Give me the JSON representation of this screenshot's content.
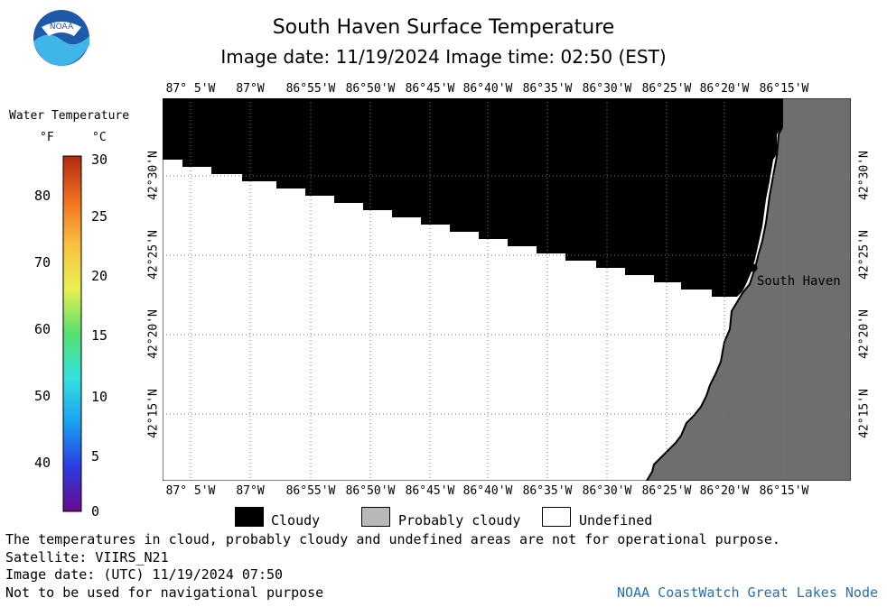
{
  "header": {
    "title": "South Haven Surface Temperature",
    "subtitle": "Image date: 11/19/2024   Image time: 02:50 (EST)"
  },
  "logo": {
    "text": "NOAA",
    "icon": "noaa-logo-icon",
    "colors": {
      "blue": "#1e5aa8",
      "cyan": "#3fb5e8"
    }
  },
  "colorbar": {
    "title": "Water Temperature",
    "unit_f": "°F",
    "unit_c": "°C",
    "f_ticks": [
      "80",
      "70",
      "60",
      "50",
      "40"
    ],
    "c_ticks": [
      "30",
      "25",
      "20",
      "15",
      "10",
      "5",
      "0"
    ],
    "colors": [
      "#6a0a8a",
      "#2b3ce0",
      "#1aa0f0",
      "#33e0e0",
      "#55e070",
      "#e8f050",
      "#f8c040",
      "#f07020",
      "#b02a10"
    ]
  },
  "map": {
    "lon_labels": [
      "87° 5'W",
      "87°W",
      "86°55'W",
      "86°50'W",
      "86°45'W",
      "86°40'W",
      "86°35'W",
      "86°30'W",
      "86°25'W",
      "86°20'W",
      "86°15'W"
    ],
    "lat_labels": [
      "42°30'N",
      "42°25'N",
      "42°20'N",
      "42°15'N"
    ],
    "city": "South Haven",
    "colors": {
      "cloud": "#000000",
      "land": "#6e6e6e",
      "undefined": "#ffffff"
    }
  },
  "legend": {
    "cloudy": "Cloudy",
    "probably_cloudy": "Probably cloudy",
    "undefined": "Undefined",
    "colors": {
      "cloudy": "#000000",
      "probably_cloudy": "#b8b8b8",
      "undefined": "#ffffff"
    }
  },
  "footer": {
    "note": "The temperatures in cloud, probably cloudy and undefined areas are not for operational purpose.",
    "satellite": "Satellite: VIIRS_N21",
    "utc_date": "Image date: (UTC) 11/19/2024  07:50",
    "nav": "Not to be used for navigational purpose",
    "credit": "NOAA CoastWatch Great Lakes Node"
  }
}
